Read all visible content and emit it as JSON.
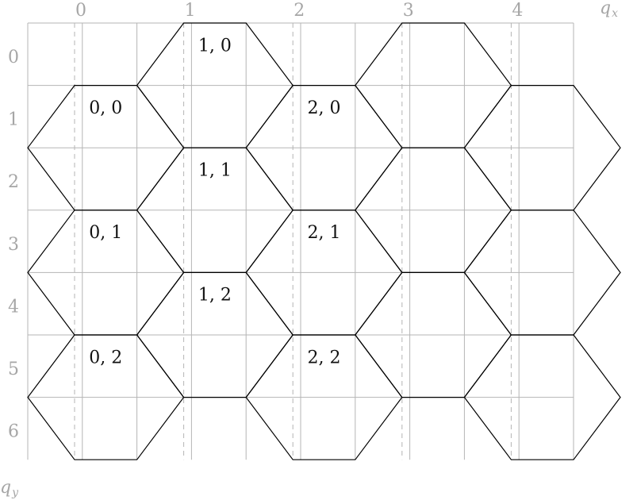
{
  "diagram": {
    "grid": {
      "col_ticks": [
        "0",
        "1",
        "2",
        "3",
        "4"
      ],
      "row_ticks": [
        "0",
        "1",
        "2",
        "3",
        "4",
        "5",
        "6"
      ]
    },
    "axes": {
      "x": {
        "name": "q",
        "sub": "x"
      },
      "y": {
        "name": "q",
        "sub": "y"
      }
    },
    "hex_labels": [
      {
        "q": 0,
        "r": 0,
        "text": "0, 0"
      },
      {
        "q": 0,
        "r": 1,
        "text": "0, 1"
      },
      {
        "q": 0,
        "r": 2,
        "text": "0, 2"
      },
      {
        "q": 1,
        "r": 0,
        "text": "1, 0"
      },
      {
        "q": 1,
        "r": 1,
        "text": "1, 1"
      },
      {
        "q": 1,
        "r": 2,
        "text": "1, 2"
      },
      {
        "q": 2,
        "r": 0,
        "text": "2, 0"
      },
      {
        "q": 2,
        "r": 1,
        "text": "2, 1"
      },
      {
        "q": 2,
        "r": 2,
        "text": "2, 2"
      }
    ],
    "colors": {
      "grid": "#b5b5b5",
      "dashed": "#b5b5b5",
      "hex_stroke": "#000000",
      "tick_text": "#a6a6a6",
      "label_text": "#111111"
    }
  }
}
